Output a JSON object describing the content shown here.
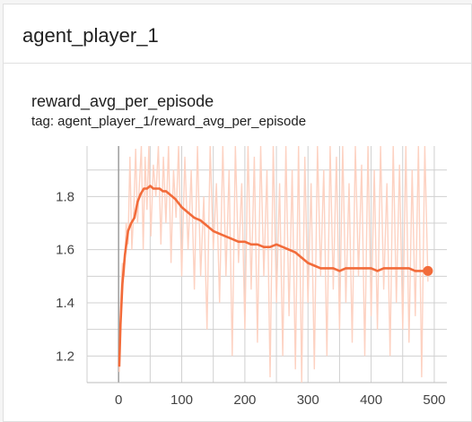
{
  "panel": {
    "title": "agent_player_1"
  },
  "card": {
    "title": "reward_avg_per_episode",
    "tag": "tag: agent_player_1/reward_avg_per_episode"
  },
  "colors": {
    "smoothed": "#f26b3a",
    "raw": "#fdd2c2",
    "grid": "#d0d0d0",
    "axis": "#9e9e9e"
  },
  "chart_data": {
    "type": "line",
    "title": "reward_avg_per_episode",
    "xlabel": "",
    "ylabel": "",
    "xlim": [
      -50,
      520
    ],
    "ylim": [
      1.1,
      1.99
    ],
    "x_ticks": [
      0,
      100,
      200,
      300,
      400,
      500
    ],
    "y_ticks": [
      1.2,
      1.4,
      1.6,
      1.8
    ],
    "grid": true,
    "legend": "none",
    "series": [
      {
        "role": "smoothed",
        "x": [
          1,
          3,
          6,
          10,
          15,
          20,
          25,
          30,
          35,
          40,
          45,
          50,
          55,
          60,
          65,
          70,
          75,
          80,
          90,
          100,
          110,
          120,
          130,
          140,
          150,
          160,
          170,
          180,
          190,
          200,
          210,
          220,
          230,
          240,
          250,
          260,
          270,
          280,
          290,
          300,
          310,
          320,
          330,
          340,
          350,
          360,
          370,
          380,
          390,
          400,
          410,
          420,
          430,
          440,
          450,
          460,
          470,
          480,
          490
        ],
        "y": [
          1.16,
          1.32,
          1.47,
          1.58,
          1.67,
          1.7,
          1.72,
          1.78,
          1.81,
          1.83,
          1.83,
          1.84,
          1.83,
          1.83,
          1.83,
          1.82,
          1.82,
          1.81,
          1.79,
          1.76,
          1.74,
          1.72,
          1.71,
          1.69,
          1.67,
          1.66,
          1.65,
          1.64,
          1.63,
          1.63,
          1.62,
          1.62,
          1.61,
          1.61,
          1.62,
          1.61,
          1.6,
          1.59,
          1.57,
          1.55,
          1.54,
          1.53,
          1.53,
          1.53,
          1.52,
          1.53,
          1.53,
          1.53,
          1.53,
          1.53,
          1.52,
          1.53,
          1.53,
          1.53,
          1.53,
          1.53,
          1.52,
          1.52,
          1.52
        ]
      },
      {
        "role": "raw",
        "x": [
          1,
          3,
          6,
          9,
          12,
          15,
          18,
          21,
          24,
          27,
          30,
          33,
          36,
          39,
          42,
          45,
          48,
          51,
          55,
          59,
          63,
          67,
          71,
          75,
          79,
          83,
          87,
          91,
          95,
          100,
          105,
          110,
          115,
          120,
          125,
          130,
          135,
          140,
          145,
          150,
          155,
          160,
          165,
          170,
          175,
          180,
          185,
          190,
          195,
          200,
          205,
          210,
          215,
          220,
          225,
          230,
          235,
          240,
          245,
          250,
          255,
          260,
          265,
          270,
          275,
          280,
          285,
          290,
          295,
          300,
          305,
          310,
          315,
          320,
          325,
          330,
          335,
          340,
          345,
          350,
          355,
          360,
          365,
          370,
          375,
          380,
          385,
          390,
          395,
          400,
          405,
          410,
          415,
          420,
          425,
          430,
          435,
          440,
          445,
          450,
          455,
          460,
          465,
          470,
          475,
          480,
          485,
          490
        ],
        "y": [
          1.14,
          1.4,
          1.55,
          1.5,
          1.7,
          1.62,
          1.95,
          1.6,
          1.75,
          1.98,
          1.7,
          1.85,
          1.99,
          1.6,
          1.95,
          1.75,
          1.99,
          1.65,
          1.92,
          1.8,
          1.99,
          1.62,
          1.95,
          1.7,
          1.99,
          1.55,
          1.9,
          1.72,
          1.99,
          1.5,
          1.95,
          1.6,
          1.9,
          1.45,
          1.99,
          1.5,
          1.8,
          1.3,
          1.99,
          1.6,
          1.85,
          1.4,
          1.99,
          1.5,
          1.9,
          1.2,
          1.99,
          1.55,
          1.85,
          1.3,
          1.99,
          1.45,
          1.95,
          1.25,
          1.99,
          1.5,
          1.9,
          1.12,
          1.99,
          1.4,
          1.85,
          1.2,
          1.99,
          1.35,
          1.9,
          1.15,
          1.99,
          1.1,
          1.95,
          1.4,
          1.85,
          1.15,
          1.99,
          1.5,
          1.9,
          1.2,
          1.99,
          1.45,
          1.95,
          1.3,
          1.99,
          1.4,
          1.85,
          1.25,
          1.99,
          1.5,
          1.92,
          1.2,
          1.99,
          1.35,
          1.9,
          1.3,
          1.99,
          1.45,
          1.85,
          1.2,
          1.99,
          1.4,
          1.92,
          1.3,
          1.99,
          1.25,
          1.9,
          1.35,
          1.99,
          1.12,
          1.99,
          1.48
        ]
      }
    ]
  }
}
